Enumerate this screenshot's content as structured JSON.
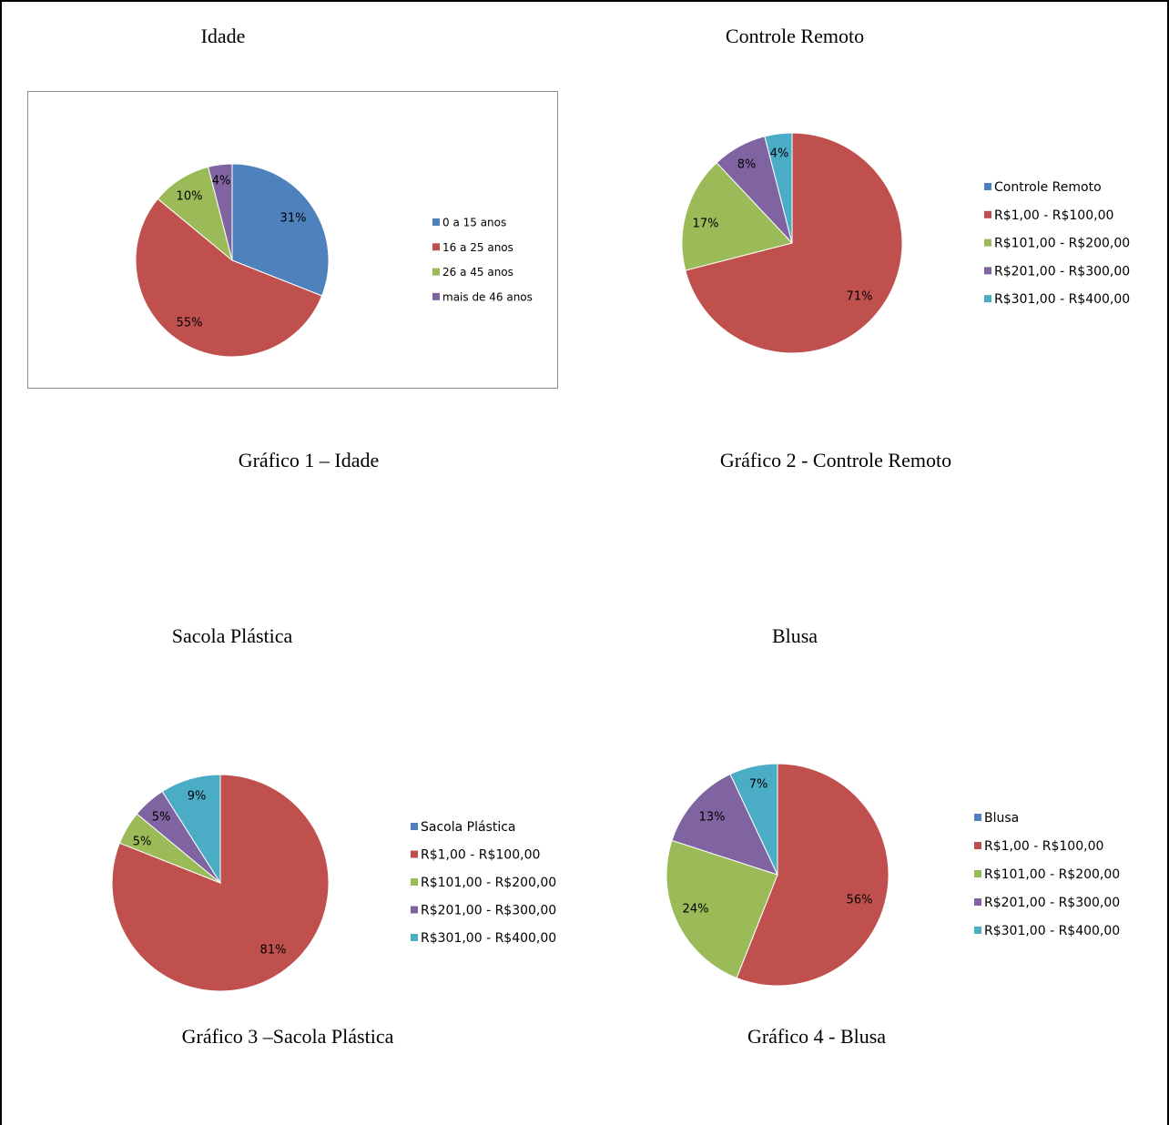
{
  "chart_data": [
    {
      "type": "pie",
      "title": "Idade",
      "caption": "Gráfico 1 – Idade",
      "categories": [
        "0 a 15 anos",
        "16 a 25 anos",
        "26 a 45 anos",
        "mais de 46 anos"
      ],
      "values": [
        31,
        55,
        10,
        4
      ],
      "labels": [
        "31%",
        "55%",
        "10%",
        "4%"
      ],
      "colors": [
        "#4f81bd",
        "#c0504d",
        "#9bbb59",
        "#8064a2"
      ],
      "legend_placement": "right",
      "has_border": true
    },
    {
      "type": "pie",
      "title": "Controle Remoto",
      "caption": "Gráfico 2 - Controle Remoto",
      "categories": [
        "Controle Remoto",
        "R$1,00 - R$100,00",
        "R$101,00 - R$200,00",
        "R$201,00 - R$300,00",
        "R$301,00 - R$400,00"
      ],
      "values": [
        0,
        71,
        17,
        8,
        4
      ],
      "labels": [
        "",
        "71%",
        "17%",
        "8%",
        "4%"
      ],
      "colors": [
        "#4f81bd",
        "#c0504d",
        "#9bbb59",
        "#8064a2",
        "#4bacc6"
      ],
      "legend_placement": "right",
      "has_border": false
    },
    {
      "type": "pie",
      "title": "Sacola Plástica",
      "caption": "Gráfico 3 –Sacola Plástica",
      "categories": [
        "Sacola Plástica",
        "R$1,00 - R$100,00",
        "R$101,00 - R$200,00",
        "R$201,00 - R$300,00",
        "R$301,00 - R$400,00"
      ],
      "values": [
        0,
        81,
        5,
        5,
        9
      ],
      "labels": [
        "",
        "81%",
        "5%",
        "5%",
        "9%"
      ],
      "colors": [
        "#4f81bd",
        "#c0504d",
        "#9bbb59",
        "#8064a2",
        "#4bacc6"
      ],
      "legend_placement": "right",
      "has_border": false
    },
    {
      "type": "pie",
      "title": "Blusa",
      "caption": "Gráfico 4 - Blusa",
      "categories": [
        "Blusa",
        "R$1,00 - R$100,00",
        "R$101,00 - R$200,00",
        "R$201,00 - R$300,00",
        "R$301,00 - R$400,00"
      ],
      "values": [
        0,
        56,
        24,
        13,
        7
      ],
      "labels": [
        "",
        "56%",
        "24%",
        "13%",
        "7%"
      ],
      "colors": [
        "#4f81bd",
        "#c0504d",
        "#9bbb59",
        "#8064a2",
        "#4bacc6"
      ],
      "legend_placement": "right",
      "has_border": false
    }
  ]
}
